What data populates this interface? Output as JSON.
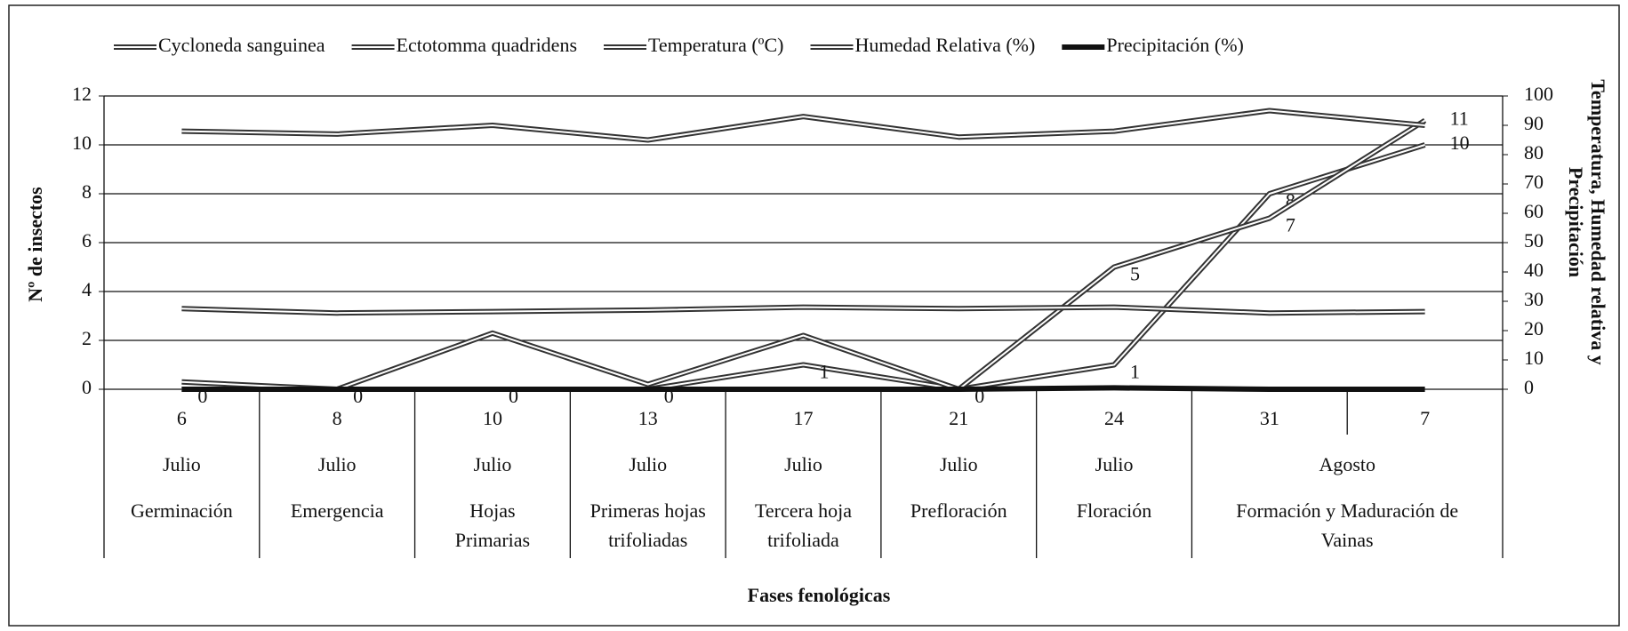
{
  "chart_data": {
    "type": "line",
    "xlabel": "Fases fenológicas",
    "ylabel": "Nº de insectos",
    "y2label": [
      "Temperatura, Humedad relativa y",
      "Precipitación"
    ],
    "categories": [
      "6",
      "8",
      "10",
      "13",
      "17",
      "21",
      "24",
      "31",
      "7"
    ],
    "months": [
      "Julio",
      "Julio",
      "Julio",
      "Julio",
      "Julio",
      "Julio",
      "Julio",
      "Agosto",
      null
    ],
    "phases": [
      [
        "Germinación"
      ],
      [
        "Emergencia"
      ],
      [
        "Hojas",
        "Primarias"
      ],
      [
        "Primeras hojas",
        "trifoliadas"
      ],
      [
        "Tercera hoja",
        "trifoliada"
      ],
      [
        "Prefloración"
      ],
      [
        "Floración"
      ],
      [
        "Formación y Maduración de",
        "Vainas"
      ],
      null
    ],
    "ylim": [
      0,
      12
    ],
    "yticks": [
      0,
      2,
      4,
      6,
      8,
      10,
      12
    ],
    "y2lim": [
      0,
      100
    ],
    "y2ticks": [
      0,
      10,
      20,
      30,
      40,
      50,
      60,
      70,
      80,
      90,
      100
    ],
    "grid": true,
    "legend": "top",
    "series": [
      {
        "name": "Cycloneda sanguinea",
        "color": "#333333",
        "line_style": "double",
        "values": [
          0,
          0,
          0,
          0,
          1,
          0,
          1,
          8,
          10
        ],
        "value_labels": [
          "0",
          "0",
          "0",
          "0",
          "1",
          "0",
          "1",
          "8",
          "10"
        ]
      },
      {
        "name": "Ectotomma quadridens",
        "color": "#333333",
        "line_style": "double",
        "values": [
          0.3,
          0,
          2.3,
          0.2,
          2.2,
          0,
          5,
          7,
          11
        ],
        "value_labels": [
          null,
          null,
          null,
          null,
          null,
          null,
          "5",
          "7",
          "11"
        ]
      },
      {
        "name": "Temperatura (ºC)",
        "color": "#333333",
        "line_style": "double",
        "axis": "y2",
        "values": [
          27.5,
          26,
          26.5,
          27,
          28,
          27.5,
          28,
          26,
          26.5
        ]
      },
      {
        "name": "Humedad Relativa (%)",
        "color": "#333333",
        "line_style": "double",
        "axis": "y2",
        "values": [
          88,
          87,
          90,
          85,
          93,
          86,
          88,
          95,
          90
        ]
      },
      {
        "name": "Precipitación (%)",
        "color": "#111111",
        "line_style": "solid",
        "axis": "y2",
        "values": [
          0,
          0,
          0,
          0,
          0,
          0,
          0.5,
          0,
          0
        ]
      }
    ]
  }
}
